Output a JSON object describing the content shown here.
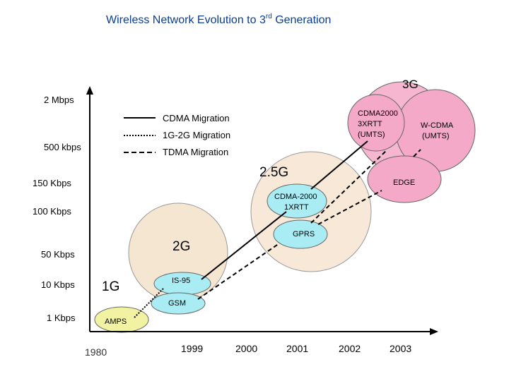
{
  "title": "Wireless Network Evolution to 3",
  "title_sup": "rd",
  "title_tail": "  Generation",
  "y_axis_labels": {
    "mbps2": "2 Mbps",
    "kbps500": "500 kbps",
    "kbps150": "150 Kbps",
    "kbps100": "100 Kbps",
    "kbps50": "50 Kbps",
    "kbps10": "10 Kbps",
    "kbps1": "1 Kbps"
  },
  "x_axis_labels": {
    "y1980": "1980",
    "y1999": "1999",
    "y2000": "2000",
    "y2001": "2001",
    "y2002": "2002",
    "y2003": "2003"
  },
  "legend": {
    "cdma": "CDMA Migration",
    "g1g2": "1G-2G Migration",
    "tdma": "TDMA Migration"
  },
  "generations": {
    "g1": "1G",
    "g2": "2G",
    "g25": "2.5G",
    "g3": "3G"
  },
  "nodes": {
    "amps": "AMPS",
    "is95": "IS-95",
    "gsm": "GSM",
    "gprs": "GPRS",
    "cdma2000_1x_l1": "CDMA-2000",
    "cdma2000_1x_l2": "1XRTT",
    "edge": "EDGE",
    "cdma2000_3x_l1": "CDMA2000",
    "cdma2000_3x_l2": "3XRTT",
    "cdma2000_3x_l3": "(UMTS)",
    "wcdma_l1": "W-CDMA",
    "wcdma_l2": "(UMTS)"
  },
  "colors": {
    "title_blue": "#0b3d91",
    "circle_3g": "#f6b6cf",
    "circle_25g": "#f7e8d8",
    "bubble_cdma3x": "#f4a9c8",
    "bubble_wcdma": "#f4a9c8",
    "bubble_edge": "#f4a9c8",
    "bubble_cdma1x": "#a9ecf4",
    "bubble_gprs": "#a9ecf4",
    "circle_2g": "#f5e6d2",
    "bubble_is95": "#a9ecf4",
    "bubble_gsm": "#a9ecf4",
    "bubble_amps": "#f2f2a3"
  }
}
